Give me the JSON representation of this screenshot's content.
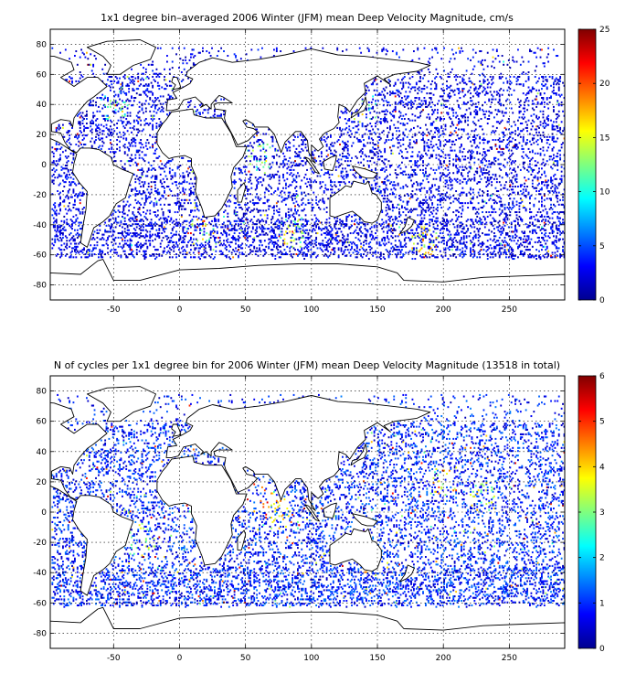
{
  "chart_data": [
    {
      "type": "heatmap",
      "title": "1x1 degree bin–averaged 2006 Winter (JFM) mean Deep Velocity Magnitude, cm/s",
      "xlabel": "",
      "ylabel": "",
      "xlim": [
        -98,
        292
      ],
      "ylim": [
        -90,
        90
      ],
      "xticks": [
        -50,
        0,
        50,
        100,
        150,
        200,
        250
      ],
      "yticks": [
        80,
        60,
        40,
        20,
        0,
        -20,
        -40,
        -60,
        -80
      ],
      "grid": true,
      "colorbar": {
        "min": 0,
        "max": 25,
        "ticks": [
          25,
          20,
          15,
          10,
          5,
          0
        ],
        "colormap": "jet"
      },
      "field": "Deep Velocity Magnitude, cm/s",
      "typical_value": 3,
      "hotspots": [
        {
          "lon": 15,
          "lat": -42,
          "value": 18
        },
        {
          "lon": 60,
          "lat": 5,
          "value": 16
        },
        {
          "lon": 85,
          "lat": -45,
          "value": 17
        },
        {
          "lon": 185,
          "lat": -50,
          "value": 19
        },
        {
          "lon": -50,
          "lat": 40,
          "value": 14
        },
        {
          "lon": 140,
          "lat": 37,
          "value": 15
        }
      ]
    },
    {
      "type": "heatmap",
      "title": "N of cycles per 1x1 degree bin for 2006 Winter (JFM) mean Deep Velocity Magnitude (13518 in total)",
      "xlabel": "",
      "ylabel": "",
      "xlim": [
        -98,
        292
      ],
      "ylim": [
        -90,
        90
      ],
      "xticks": [
        -50,
        0,
        50,
        100,
        150,
        200,
        250
      ],
      "yticks": [
        80,
        60,
        40,
        20,
        0,
        -20,
        -40,
        -60,
        -80
      ],
      "grid": true,
      "colorbar": {
        "min": 0,
        "max": 6,
        "ticks": [
          6,
          5,
          4,
          3,
          2,
          1,
          0
        ],
        "colormap": "jet"
      },
      "field": "N of cycles",
      "total_cycles": 13518,
      "typical_value": 1,
      "hotspots": [
        {
          "lon": 60,
          "lat": 10,
          "value": 6
        },
        {
          "lon": 75,
          "lat": 0,
          "value": 5
        },
        {
          "lon": 200,
          "lat": 20,
          "value": 5
        },
        {
          "lon": -30,
          "lat": -20,
          "value": 4
        },
        {
          "lon": 230,
          "lat": 10,
          "value": 4
        }
      ]
    }
  ]
}
